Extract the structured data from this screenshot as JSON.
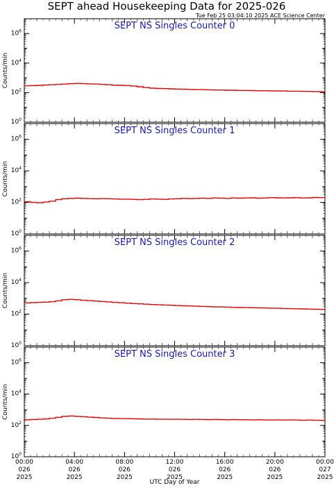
{
  "header": {
    "title": "SEPT ahead Housekeeping Data for 2025-026",
    "timestamp": "Tue Feb 25 03:04:10 2025 ACE Science Center"
  },
  "chart_data": [
    {
      "type": "line",
      "title": "SEPT NS Singles Counter 0",
      "ylabel": "Counts/min",
      "xlabel": "",
      "yscale": "log",
      "ylim": [
        1,
        10000000
      ],
      "ytick_labels": [
        "10^0",
        "10^2",
        "10^4",
        "10^6"
      ],
      "xlim_hours": [
        0,
        24
      ],
      "line_color": "#e00000",
      "title_color": "#1a1aa0",
      "series": [
        {
          "x": [
            0,
            0.5,
            1,
            1.5,
            2,
            2.5,
            3,
            3.5,
            4,
            4.5,
            5,
            5.5,
            6,
            6.5,
            7,
            7.5,
            8,
            8.5,
            9,
            9.5,
            10,
            10.5,
            11,
            11.5,
            12,
            12.5,
            13,
            13.5,
            14,
            14.5,
            15,
            15.5,
            16,
            16.5,
            17,
            17.5,
            18,
            18.5,
            19,
            19.5,
            20,
            20.5,
            21,
            21.5,
            22,
            22.5,
            23,
            23.5,
            24
          ],
          "y": [
            290,
            300,
            310,
            330,
            340,
            360,
            380,
            400,
            420,
            410,
            390,
            380,
            360,
            340,
            320,
            310,
            300,
            280,
            250,
            220,
            200,
            190,
            185,
            180,
            175,
            170,
            165,
            160,
            160,
            155,
            150,
            150,
            145,
            145,
            140,
            140,
            138,
            135,
            135,
            132,
            130,
            128,
            125,
            125,
            122,
            120,
            118,
            115,
            110
          ]
        }
      ]
    },
    {
      "type": "line",
      "title": "SEPT NS Singles Counter 1",
      "ylabel": "Counts/min",
      "xlabel": "",
      "yscale": "log",
      "ylim": [
        1,
        10000000
      ],
      "ytick_labels": [
        "10^0",
        "10^2",
        "10^4",
        "10^6"
      ],
      "xlim_hours": [
        0,
        24
      ],
      "line_color": "#e00000",
      "title_color": "#1a1aa0",
      "series": [
        {
          "x": [
            0,
            0.5,
            1,
            1.5,
            2,
            2.5,
            3,
            3.5,
            4,
            4.5,
            5,
            5.5,
            6,
            6.5,
            7,
            7.5,
            8,
            8.5,
            9,
            9.5,
            10,
            10.5,
            11,
            11.5,
            12,
            12.5,
            13,
            13.5,
            14,
            14.5,
            15,
            15.5,
            16,
            16.5,
            17,
            17.5,
            18,
            18.5,
            19,
            19.5,
            20,
            20.5,
            21,
            21.5,
            22,
            22.5,
            23,
            23.5,
            24
          ],
          "y": [
            110,
            100,
            95,
            105,
            120,
            150,
            170,
            180,
            185,
            180,
            175,
            170,
            175,
            170,
            165,
            160,
            160,
            155,
            150,
            155,
            165,
            160,
            155,
            165,
            170,
            180,
            175,
            180,
            185,
            180,
            190,
            185,
            180,
            190,
            185,
            190,
            195,
            185,
            190,
            200,
            195,
            190,
            195,
            200,
            190,
            195,
            205,
            200,
            195
          ]
        }
      ]
    },
    {
      "type": "line",
      "title": "SEPT NS Singles Counter 2",
      "ylabel": "Counts/min",
      "xlabel": "",
      "yscale": "log",
      "ylim": [
        1,
        10000000
      ],
      "ytick_labels": [
        "10^0",
        "10^2",
        "10^4",
        "10^6"
      ],
      "xlim_hours": [
        0,
        24
      ],
      "line_color": "#e00000",
      "title_color": "#1a1aa0",
      "series": [
        {
          "x": [
            0,
            0.5,
            1,
            1.5,
            2,
            2.5,
            3,
            3.5,
            4,
            4.5,
            5,
            5.5,
            6,
            6.5,
            7,
            7.5,
            8,
            8.5,
            9,
            9.5,
            10,
            10.5,
            11,
            11.5,
            12,
            12.5,
            13,
            13.5,
            14,
            14.5,
            15,
            15.5,
            16,
            16.5,
            17,
            17.5,
            18,
            18.5,
            19,
            19.5,
            20,
            20.5,
            21,
            21.5,
            22,
            22.5,
            23,
            23.5,
            24
          ],
          "y": [
            520,
            540,
            560,
            580,
            620,
            700,
            820,
            860,
            820,
            760,
            720,
            680,
            640,
            600,
            560,
            530,
            500,
            470,
            450,
            430,
            410,
            390,
            380,
            370,
            350,
            340,
            330,
            320,
            310,
            300,
            290,
            285,
            280,
            270,
            265,
            260,
            255,
            250,
            245,
            240,
            235,
            230,
            225,
            220,
            215,
            210,
            205,
            200,
            195
          ]
        }
      ]
    },
    {
      "type": "line",
      "title": "SEPT NS Singles Counter 3",
      "ylabel": "Counts/min",
      "xlabel": "UTC Day of Year",
      "yscale": "log",
      "ylim": [
        1,
        10000000
      ],
      "ytick_labels": [
        "10^0",
        "10^2",
        "10^4",
        "10^6"
      ],
      "xlim_hours": [
        0,
        24
      ],
      "line_color": "#e00000",
      "title_color": "#1a1aa0",
      "series": [
        {
          "x": [
            0,
            0.5,
            1,
            1.5,
            2,
            2.5,
            3,
            3.5,
            4,
            4.5,
            5,
            5.5,
            6,
            6.5,
            7,
            7.5,
            8,
            8.5,
            9,
            9.5,
            10,
            10.5,
            11,
            11.5,
            12,
            12.5,
            13,
            13.5,
            14,
            14.5,
            15,
            15.5,
            16,
            16.5,
            17,
            17.5,
            18,
            18.5,
            19,
            19.5,
            20,
            20.5,
            21,
            21.5,
            22,
            22.5,
            23,
            23.5,
            24
          ],
          "y": [
            230,
            240,
            250,
            260,
            290,
            330,
            380,
            400,
            380,
            360,
            340,
            320,
            300,
            290,
            280,
            275,
            270,
            265,
            260,
            255,
            255,
            250,
            250,
            245,
            250,
            245,
            240,
            245,
            240,
            235,
            240,
            235,
            230,
            235,
            230,
            230,
            225,
            230,
            225,
            220,
            225,
            220,
            225,
            220,
            215,
            220,
            215,
            210,
            210
          ]
        }
      ]
    }
  ],
  "x_axis": {
    "ticks": [
      {
        "hour": 0,
        "time": "00:00",
        "doy": "026",
        "year": "2025"
      },
      {
        "hour": 4,
        "time": "04:00",
        "doy": "026",
        "year": "2025"
      },
      {
        "hour": 8,
        "time": "08:00",
        "doy": "026",
        "year": "2025"
      },
      {
        "hour": 12,
        "time": "12:00",
        "doy": "026",
        "year": "2025"
      },
      {
        "hour": 16,
        "time": "16:00",
        "doy": "026",
        "year": "2025"
      },
      {
        "hour": 20,
        "time": "20:00",
        "doy": "026",
        "year": "2025"
      },
      {
        "hour": 24,
        "time": "00:00",
        "doy": "027",
        "year": "2025"
      }
    ],
    "label": "UTC Day of Year"
  }
}
